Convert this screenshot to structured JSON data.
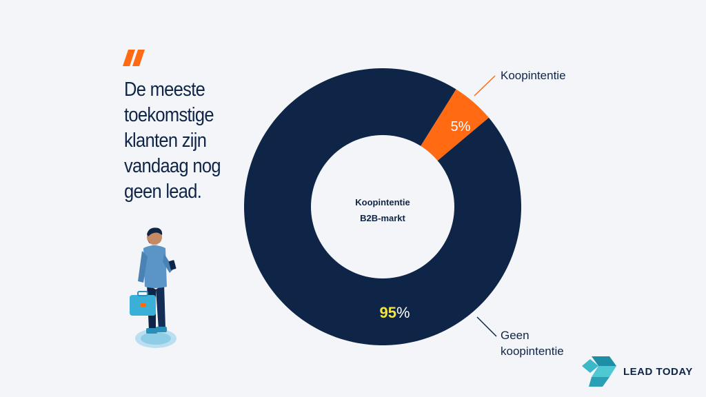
{
  "headline": "De meeste toekomstige klanten zijn vandaag nog geen lead.",
  "brand": {
    "name": "LEAD TODAY",
    "accent": "#3cb8c8"
  },
  "colors": {
    "navy": "#0f2547",
    "orange": "#ff6a13",
    "highlight": "#f5e63c",
    "background": "#f4f5f8"
  },
  "icons": {
    "quote": "quote-mark-icon",
    "person": "person-illustration",
    "logo": "lead-today-logo-icon"
  },
  "chart_data": {
    "type": "pie",
    "variant": "donut",
    "center_label": [
      "Koopintentie",
      "B2B-markt"
    ],
    "slices": [
      {
        "label": "Koopintentie",
        "value": 5,
        "display": "5%",
        "color": "#ff6a13"
      },
      {
        "label": "Geen koopintentie",
        "value": 95,
        "display_number": "95",
        "display_suffix": "%",
        "color": "#0f2547"
      }
    ]
  }
}
